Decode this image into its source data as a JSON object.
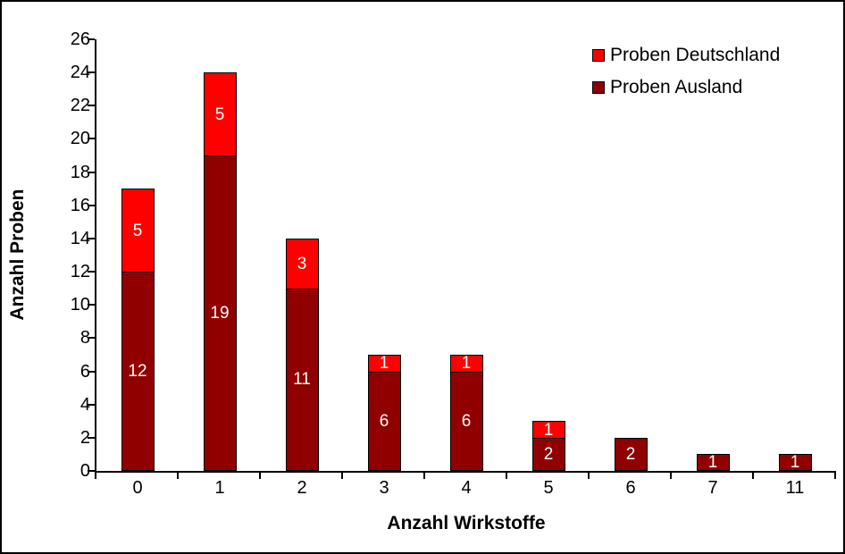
{
  "chart_data": {
    "type": "bar",
    "stacked": true,
    "xlabel": "Anzahl Wirkstoffe",
    "ylabel": "Anzahl Proben",
    "categories": [
      "0",
      "1",
      "2",
      "3",
      "4",
      "5",
      "6",
      "7",
      "11"
    ],
    "series": [
      {
        "name": "Proben Ausland",
        "color": "#900000",
        "values": [
          12,
          19,
          11,
          6,
          6,
          2,
          2,
          1,
          1
        ]
      },
      {
        "name": "Proben Deutschland",
        "color": "#FF0000",
        "values": [
          5,
          5,
          3,
          1,
          1,
          1,
          0,
          0,
          0
        ]
      }
    ],
    "totals": [
      17,
      24,
      14,
      7,
      7,
      3,
      2,
      1,
      1
    ],
    "ylim": [
      0,
      26
    ],
    "ytick_step": 2,
    "grid": false,
    "legend_position": "top-right",
    "legend": [
      {
        "label": "Proben Deutschland",
        "color": "#FF0000"
      },
      {
        "label": "Proben Ausland",
        "color": "#900000"
      }
    ],
    "bar_label_color": "#FFFFFF",
    "axis_color": "#000000",
    "background_color": "#FFFFFF"
  }
}
